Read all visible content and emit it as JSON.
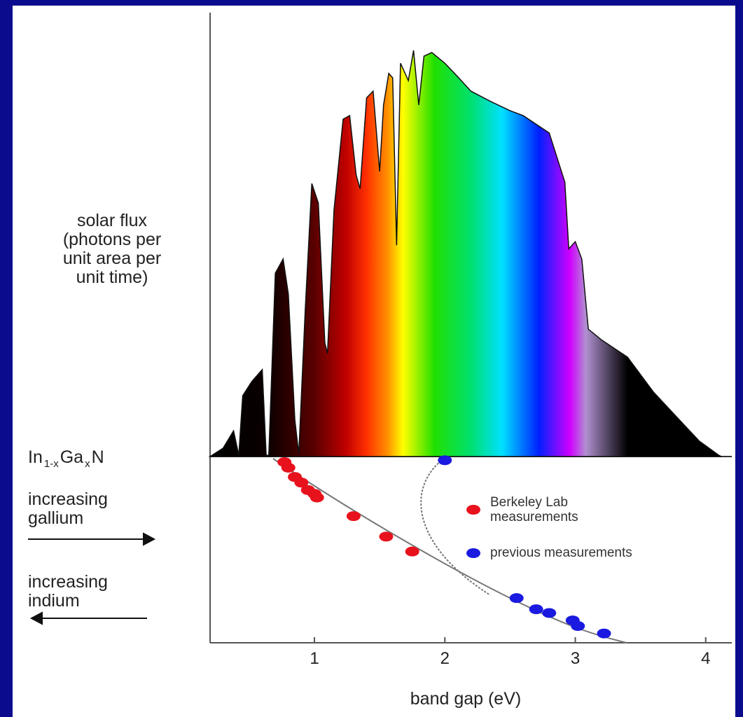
{
  "chart_data": [
    {
      "type": "area",
      "ylabel": "solar flux\n(photons per\nunit area per\nunit time)",
      "x": [
        0.2,
        0.3,
        0.38,
        0.42,
        0.45,
        0.52,
        0.6,
        0.63,
        0.65,
        0.7,
        0.76,
        0.8,
        0.85,
        0.88,
        0.93,
        0.98,
        1.03,
        1.08,
        1.1,
        1.15,
        1.22,
        1.27,
        1.32,
        1.35,
        1.4,
        1.45,
        1.5,
        1.53,
        1.57,
        1.6,
        1.63,
        1.66,
        1.72,
        1.76,
        1.8,
        1.84,
        1.9,
        2.0,
        2.1,
        2.2,
        2.35,
        2.5,
        2.6,
        2.8,
        2.92,
        2.95,
        3.0,
        3.05,
        3.1,
        3.2,
        3.4,
        3.6,
        3.8,
        3.95,
        4.1,
        4.12
      ],
      "values": [
        0,
        1.9,
        5.8,
        0.3,
        13.7,
        16.9,
        19.6,
        0.3,
        0.3,
        41.3,
        44.5,
        36.6,
        8.2,
        0.6,
        33.4,
        61.5,
        57.1,
        25.6,
        23.2,
        55.5,
        76.0,
        76.8,
        63.4,
        60.3,
        80.8,
        82.3,
        64.2,
        79.2,
        86.3,
        85.3,
        47.6,
        88.6,
        84.7,
        91.5,
        79.2,
        90.2,
        91.0,
        88.6,
        85.5,
        82.3,
        80.0,
        77.9,
        76.8,
        72.9,
        61.8,
        46.8,
        48.4,
        44.5,
        28.7,
        26.3,
        22.4,
        14.5,
        8.2,
        3.5,
        0.3,
        0
      ],
      "xlim": [
        0.2,
        4.2
      ],
      "ylim": [
        0,
        100
      ]
    },
    {
      "type": "scatter",
      "xlabel": "band gap (eV)",
      "material_label": [
        "In",
        "1-x",
        "Ga",
        "x",
        "N"
      ],
      "gallium_label": "increasing\ngallium",
      "indium_label": "increasing\nindium",
      "xlim": [
        0.2,
        4.2
      ],
      "xticks": [
        1,
        2,
        3,
        4
      ],
      "ylim": [
        0,
        1
      ],
      "y_inverted": true,
      "series": [
        {
          "name": "Berkeley Lab\nmeasurements",
          "color": "#e8121c",
          "x": [
            0.77,
            0.8,
            0.85,
            0.9,
            0.95,
            1.0,
            1.02,
            1.3,
            1.55,
            1.75
          ],
          "values": [
            0.03,
            0.06,
            0.11,
            0.14,
            0.18,
            0.2,
            0.22,
            0.32,
            0.43,
            0.51
          ]
        },
        {
          "name": "previous measurements",
          "color": "#1a1ae0",
          "x": [
            2.0,
            2.55,
            2.7,
            2.8,
            2.98,
            3.02,
            3.22
          ],
          "values": [
            0.02,
            0.76,
            0.82,
            0.84,
            0.88,
            0.91,
            0.95
          ]
        }
      ]
    }
  ]
}
